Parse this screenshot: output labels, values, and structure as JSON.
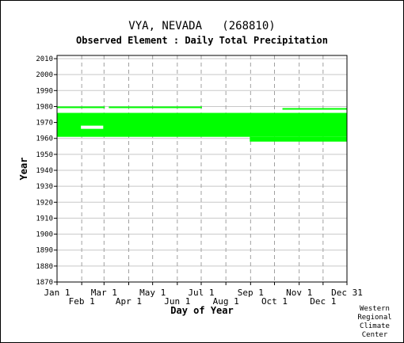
{
  "header": {
    "station": "VYA, NEVADA   (268810)",
    "element": "Observed Element : Daily Total Precipitation"
  },
  "credit": [
    "Western",
    "Regional",
    "Climate",
    "Center"
  ],
  "chart_data": {
    "type": "area",
    "xlabel": "Day of Year",
    "ylabel": "Year",
    "x_ticks_upper": [
      {
        "label": "Jan 1",
        "day": 1
      },
      {
        "label": "Mar 1",
        "day": 60
      },
      {
        "label": "May 1",
        "day": 121
      },
      {
        "label": "Jul 1",
        "day": 182
      },
      {
        "label": "Sep 1",
        "day": 244
      },
      {
        "label": "Nov 1",
        "day": 305
      },
      {
        "label": "Dec 31",
        "day": 365
      }
    ],
    "x_ticks_lower": [
      {
        "label": "Feb 1",
        "day": 32
      },
      {
        "label": "Apr 1",
        "day": 91
      },
      {
        "label": "Jun 1",
        "day": 152
      },
      {
        "label": "Aug 1",
        "day": 213
      },
      {
        "label": "Oct 1",
        "day": 274
      },
      {
        "label": "Dec 1",
        "day": 335
      }
    ],
    "y_ticks": [
      1870,
      1880,
      1890,
      1900,
      1910,
      1920,
      1930,
      1940,
      1950,
      1960,
      1970,
      1980,
      1990,
      2000,
      2010
    ],
    "xlim": [
      1,
      365
    ],
    "ylim": [
      1870,
      2012
    ],
    "grid": true,
    "series_color": "#00ff00",
    "blocks": [
      {
        "x0": 1,
        "x1": 365,
        "y0": 1961,
        "y1": 1976
      },
      {
        "x0": 1,
        "x1": 158,
        "y0": 1976,
        "y1": 1976
      },
      {
        "x0": 1,
        "x1": 61,
        "y0": 1979,
        "y1": 1980
      },
      {
        "x0": 66,
        "x1": 183,
        "y0": 1979,
        "y1": 1980
      },
      {
        "x0": 284,
        "x1": 365,
        "y0": 1978,
        "y1": 1979
      },
      {
        "x0": 243,
        "x1": 365,
        "y0": 1958,
        "y1": 1961
      }
    ],
    "gaps": [
      {
        "x0": 31,
        "x1": 59,
        "y0": 1966,
        "y1": 1968
      }
    ]
  }
}
